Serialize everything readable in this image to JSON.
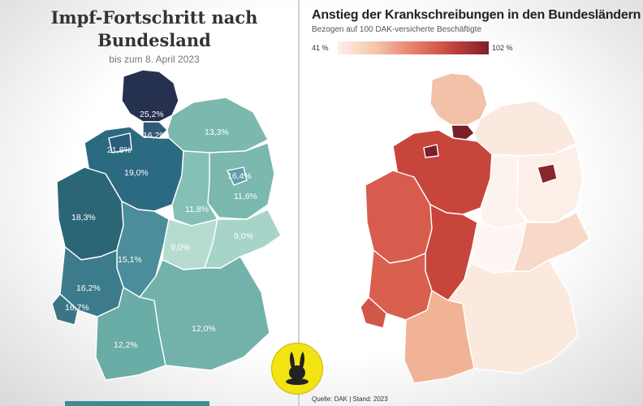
{
  "left_map": {
    "title_line1": "Impf-Fortschritt nach",
    "title_line2": "Bundesland",
    "subtitle": "bis zum 8. April 2023",
    "labels": {
      "sh": "25,2%",
      "hh": "16,2%",
      "mv": "13,3%",
      "hb": "21,8%",
      "ni": "19,0%",
      "be": "16,4%",
      "bb": "11,6%",
      "st": "11,8%",
      "nw": "18,3%",
      "th": "9,0%",
      "sn": "9,0%",
      "he": "15,1%",
      "rp": "16,2%",
      "sl": "16,7%",
      "bw": "12,2%",
      "by": "12,0%"
    }
  },
  "right_map": {
    "title": "Anstieg der Krankschreibungen in den Bundesländern",
    "subtitle": "Bezogen auf 100 DAK-versicherte Beschäftigte",
    "legend_min": "41 %",
    "legend_max": "102 %",
    "source": "Quelle: DAK | Stand: 2023"
  },
  "colors": {
    "left_high": "#27304f",
    "left_mid": "#2e6a80",
    "left_low": "#b8ddd4",
    "right_high": "#7a2028",
    "right_mid": "#c8453c",
    "right_low": "#fbebe2"
  },
  "badge_icon": "rabbit-icon"
}
